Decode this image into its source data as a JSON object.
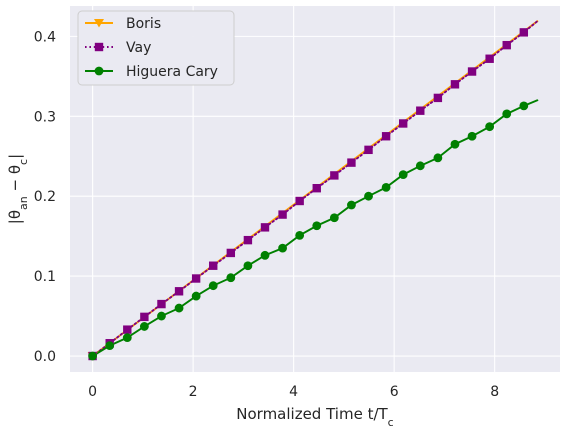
{
  "chart_data": {
    "type": "line",
    "title": "",
    "xlabel": "Normalized Time t/T",
    "xlabel_sub": "c",
    "ylabel": "|θ",
    "ylabel_sub1": "an",
    "ylabel_mid": " − θ",
    "ylabel_sub2": "c",
    "ylabel_end": "|",
    "xlim": [
      -0.45,
      9.3
    ],
    "ylim": [
      -0.02,
      0.438
    ],
    "xticks": [
      0,
      2,
      4,
      6,
      8
    ],
    "xtick_labels": [
      "0",
      "2",
      "4",
      "6",
      "8"
    ],
    "yticks": [
      0.0,
      0.1,
      0.2,
      0.3,
      0.4
    ],
    "ytick_labels": [
      "0.0",
      "0.1",
      "0.2",
      "0.3",
      "0.4"
    ],
    "grid": true,
    "legend_position": "top-left",
    "background_color": "#eaeaf2",
    "series": [
      {
        "name": "Boris",
        "color": "#ffa500",
        "line_style": "solid",
        "marker": "triangle-down",
        "x": [
          0,
          8.85
        ],
        "y": [
          0,
          0.419
        ]
      },
      {
        "name": "Vay",
        "color": "#800080",
        "line_style": "dotted",
        "marker": "square",
        "x": [
          0,
          0.34,
          0.69,
          1.03,
          1.37,
          1.72,
          2.06,
          2.4,
          2.75,
          3.09,
          3.43,
          3.78,
          4.12,
          4.46,
          4.81,
          5.15,
          5.49,
          5.84,
          6.18,
          6.52,
          6.87,
          7.21,
          7.55,
          7.9,
          8.24,
          8.58,
          8.85
        ],
        "y": [
          0,
          0.016,
          0.033,
          0.049,
          0.065,
          0.081,
          0.097,
          0.113,
          0.129,
          0.145,
          0.161,
          0.177,
          0.194,
          0.21,
          0.226,
          0.242,
          0.258,
          0.275,
          0.291,
          0.307,
          0.323,
          0.34,
          0.356,
          0.372,
          0.389,
          0.405,
          0.419
        ]
      },
      {
        "name": "Higuera Cary",
        "color": "#008000",
        "line_style": "solid",
        "marker": "circle",
        "x": [
          0,
          0.34,
          0.69,
          1.03,
          1.37,
          1.72,
          2.06,
          2.4,
          2.75,
          3.09,
          3.43,
          3.78,
          4.12,
          4.46,
          4.81,
          5.15,
          5.49,
          5.84,
          6.18,
          6.52,
          6.87,
          7.21,
          7.55,
          7.9,
          8.24,
          8.58,
          8.85
        ],
        "y": [
          0,
          0.013,
          0.023,
          0.037,
          0.05,
          0.06,
          0.075,
          0.088,
          0.098,
          0.113,
          0.126,
          0.135,
          0.151,
          0.163,
          0.173,
          0.189,
          0.2,
          0.211,
          0.227,
          0.238,
          0.248,
          0.265,
          0.275,
          0.287,
          0.303,
          0.313,
          0.32
        ]
      }
    ]
  }
}
